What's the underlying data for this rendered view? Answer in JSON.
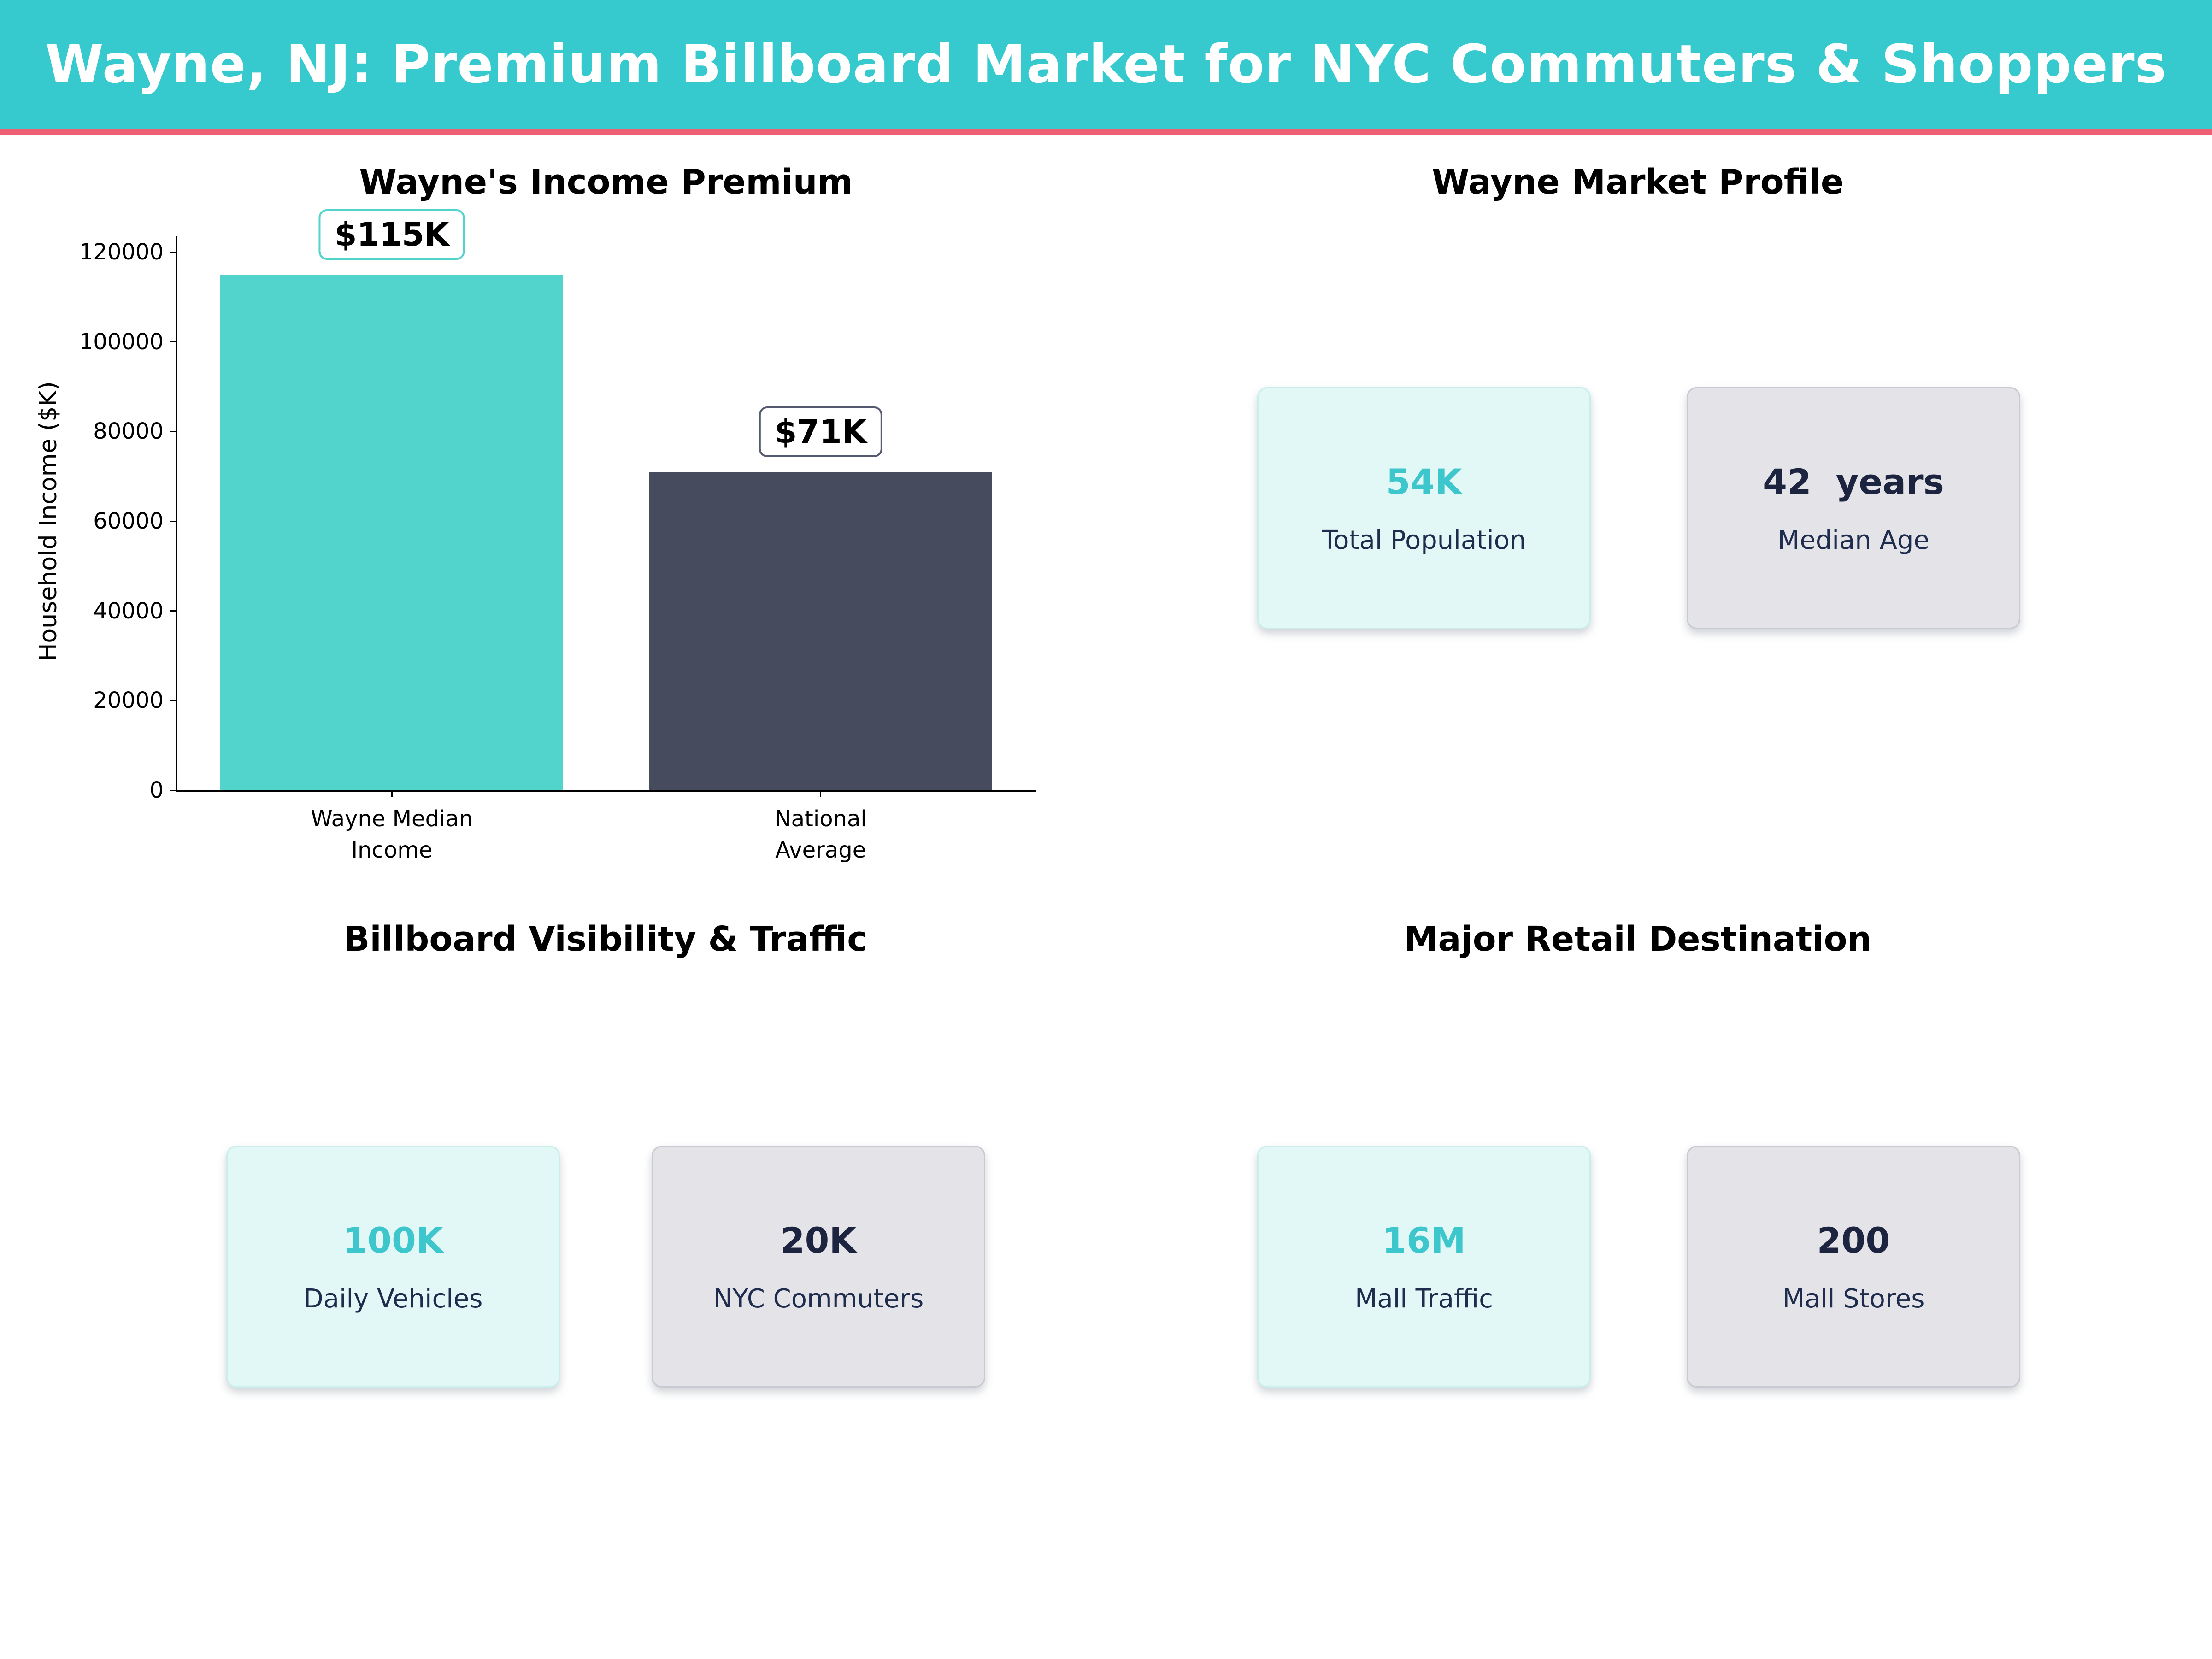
{
  "header": {
    "title": "Wayne, NJ: Premium Billboard Market for NYC Commuters & Shoppers"
  },
  "chart_data": {
    "type": "bar",
    "title": "Wayne's Income Premium",
    "xlabel": "",
    "ylabel": "Household Income ($K)",
    "categories": [
      "Wayne Median\nIncome",
      "National\nAverage"
    ],
    "values": [
      115000,
      71000
    ],
    "annotations": [
      "$115K",
      "$71K"
    ],
    "bar_colors": [
      "#52d3cb",
      "#474b5e"
    ],
    "annotation_border_colors": [
      "#52d3cb",
      "#555a70"
    ],
    "ylim": [
      0,
      120000
    ],
    "yticks": [
      0,
      20000,
      40000,
      60000,
      80000,
      100000,
      120000
    ],
    "grid": false,
    "legend": null,
    "spines": [
      "left",
      "bottom"
    ]
  },
  "sections": {
    "market_profile": {
      "title": "Wayne Market Profile",
      "cards": [
        {
          "value": "54K",
          "label": "Total Population",
          "style": "mint"
        },
        {
          "value": "42  years",
          "label": "Median Age",
          "style": "gray"
        }
      ]
    },
    "billboard": {
      "title": "Billboard Visibility & Traffic",
      "cards": [
        {
          "value": "100K",
          "label": "Daily Vehicles",
          "style": "mint"
        },
        {
          "value": "20K",
          "label": "NYC Commuters",
          "style": "gray"
        }
      ]
    },
    "retail": {
      "title": "Major Retail Destination",
      "cards": [
        {
          "value": "16M",
          "label": "Mall Traffic",
          "style": "mint"
        },
        {
          "value": "200",
          "label": "Mall Stores",
          "style": "gray"
        }
      ]
    }
  },
  "colors": {
    "header_bg": "#36c9cd",
    "divider_pink": "#ee5f74",
    "bar_teal": "#52d3cb",
    "bar_navy": "#474b5e",
    "stat_value_teal": "#3dc6cb",
    "text_navy": "#1d2440",
    "mint_card_bg": "#e2f8f6",
    "gray_card_bg": "#e3e3e8",
    "axis_black": "#000000"
  }
}
